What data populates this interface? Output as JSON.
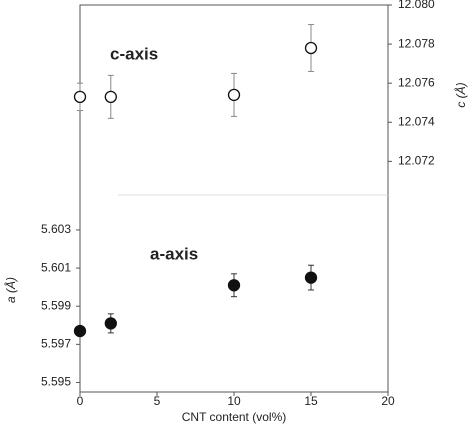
{
  "chart_data": {
    "type": "scatter",
    "xlabel": "CNT content (vol%)",
    "ylabel": "a (Å)",
    "y2label": "c (Å)",
    "xlim": [
      0,
      20
    ],
    "xticks": [
      0,
      5,
      10,
      15,
      20
    ],
    "ylim": [
      5.5945,
      5.6148
    ],
    "yticks": [
      {
        "value": 5.595,
        "label": "5.595"
      },
      {
        "value": 5.597,
        "label": "5.597"
      },
      {
        "value": 5.599,
        "label": "5.599"
      },
      {
        "value": 5.601,
        "label": "5.601"
      },
      {
        "value": 5.603,
        "label": "5.603"
      }
    ],
    "y2lim": [
      12.0602,
      12.08
    ],
    "y2ticks": [
      {
        "value": 12.072,
        "label": "12.072"
      },
      {
        "value": 12.074,
        "label": "12.074"
      },
      {
        "value": 12.076,
        "label": "12.076"
      },
      {
        "value": 12.078,
        "label": "12.078"
      },
      {
        "value": 12.08,
        "label": "12.080"
      }
    ],
    "series": [
      {
        "name": "a-axis",
        "color": "#111111",
        "filled": true,
        "x": [
          0,
          2,
          10,
          15
        ],
        "values": [
          5.5977,
          5.5981,
          5.6001,
          5.6005
        ],
        "errors": [
          0.0002,
          0.0005,
          0.0006,
          0.00065
        ]
      },
      {
        "name": "c-axis",
        "color": "#111111",
        "filled": false,
        "axis": "y2",
        "x": [
          0,
          2,
          10,
          15
        ],
        "values": [
          12.0753,
          12.0753,
          12.0754,
          12.0778
        ],
        "errors": [
          0.0007,
          0.0011,
          0.0011,
          0.0012
        ]
      }
    ]
  }
}
